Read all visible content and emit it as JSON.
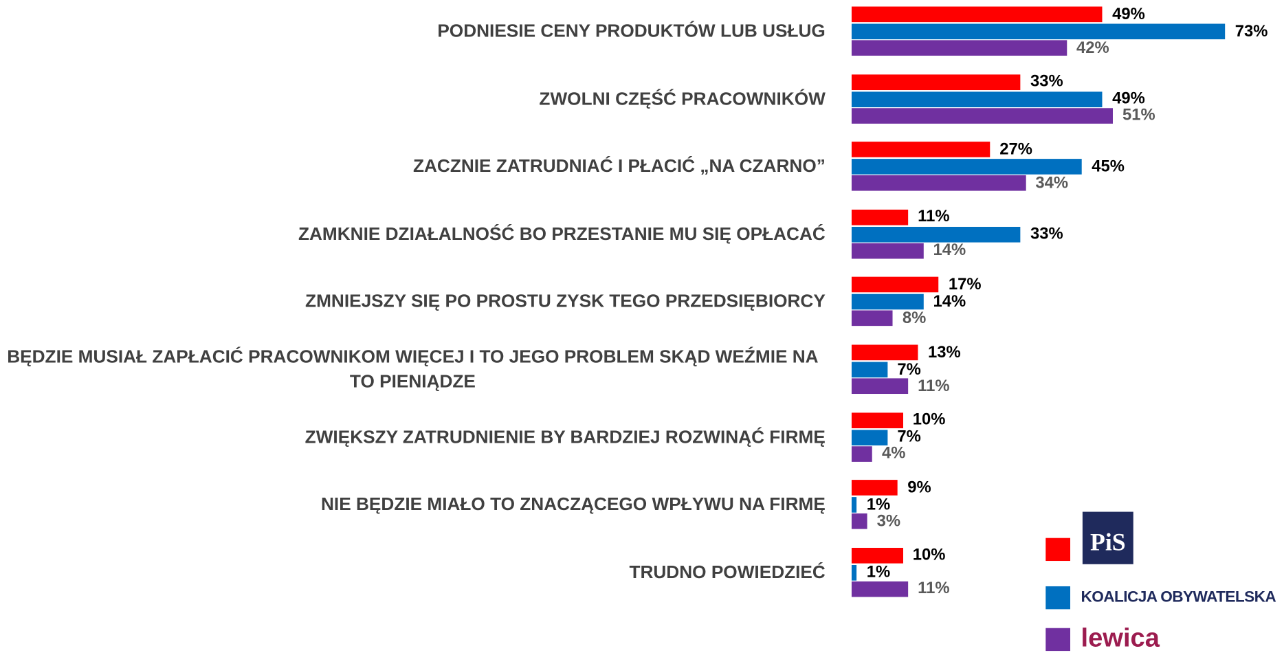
{
  "chart_data": {
    "type": "bar",
    "orientation": "horizontal",
    "categories": [
      "PODNIESIE CENY PRODUKTÓW LUB USŁUG",
      "ZWOLNI CZĘŚĆ PRACOWNIKÓW",
      "ZACZNIE ZATRUDNIAĆ I PŁACIĆ „NA CZARNO”",
      "ZAMKNIE DZIAŁALNOŚĆ BO PRZESTANIE MU SIĘ OPŁACAĆ",
      "ZMNIEJSZY SIĘ PO PROSTU ZYSK TEGO PRZEDSIĘBIORCY",
      "BĘDZIE MUSIAŁ ZAPŁACIĆ PRACOWNIKOM WIĘCEJ I TO JEGO PROBLEM SKĄD WEŹMIE NA TO PIENIĄDZE",
      "ZWIĘKSZY ZATRUDNIENIE BY BARDZIEJ ROZWINĄĆ FIRMĘ",
      "NIE BĘDZIE MIAŁO TO ZNACZĄCEGO WPŁYWU NA FIRMĘ",
      "TRUDNO POWIEDZIEĆ"
    ],
    "series": [
      {
        "name": "PiS",
        "color": "#ff0000",
        "label_color": "#000000",
        "values": [
          49,
          33,
          27,
          11,
          17,
          13,
          10,
          9,
          10
        ],
        "value_labels": [
          "49%",
          "33%",
          "27%",
          "11%",
          "17%",
          "13%",
          "10%",
          "9%",
          "10%"
        ]
      },
      {
        "name": "KOALICJA OBYWATELSKA",
        "color": "#0070c0",
        "label_color": "#000000",
        "values": [
          73,
          49,
          45,
          33,
          14,
          7,
          7,
          1,
          1
        ],
        "value_labels": [
          "73%",
          "49%",
          "45%",
          "33%",
          "14%",
          "7%",
          "7%",
          "1%",
          "1%"
        ]
      },
      {
        "name": "lewica",
        "color": "#7030a0",
        "label_color": "#595959",
        "values": [
          42,
          51,
          34,
          14,
          8,
          11,
          4,
          3,
          11
        ],
        "value_labels": [
          "42%",
          "51%",
          "34%",
          "14%",
          "8%",
          "11%",
          "4%",
          "3%",
          "11%"
        ]
      }
    ]
  }
}
